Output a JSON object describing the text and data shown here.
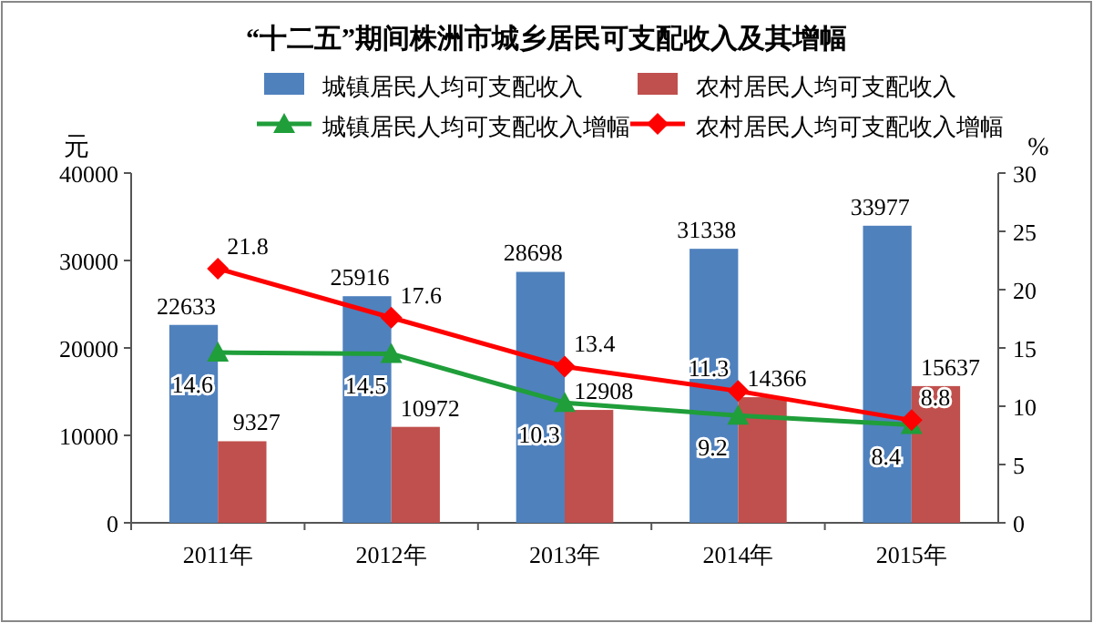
{
  "chart_data": {
    "type": "bar",
    "title": "“十二五”期间株洲市城乡居民可支配收入及其增幅",
    "categories": [
      "2011年",
      "2012年",
      "2013年",
      "2014年",
      "2015年"
    ],
    "ylabel": "元",
    "y2label": "%",
    "ylim": [
      0,
      40000
    ],
    "yticks": [
      0,
      10000,
      20000,
      30000,
      40000
    ],
    "y2lim": [
      0,
      30
    ],
    "y2ticks": [
      0,
      5,
      10,
      15,
      20,
      25,
      30
    ],
    "data_labels": true,
    "legend": "top",
    "series": [
      {
        "name": "城镇居民人均可支配收入",
        "color": "#4f81bd",
        "values": [
          22633,
          25916,
          28698,
          31338,
          33977
        ]
      },
      {
        "name": "农村居民人均可支配收入",
        "color": "#c0504d",
        "values": [
          9327,
          10972,
          12908,
          14366,
          15637
        ]
      },
      {
        "name": "城镇居民人均可支配收入增幅",
        "type": "line",
        "axis": "y2",
        "color": "#1f9e3a",
        "marker": "triangle",
        "values": [
          14.6,
          14.5,
          10.3,
          9.2,
          8.4
        ]
      },
      {
        "name": "农村居民人均可支配收入增幅",
        "type": "line",
        "axis": "y2",
        "color": "#ff0000",
        "marker": "diamond",
        "values": [
          21.8,
          17.6,
          13.4,
          11.3,
          8.8
        ]
      }
    ]
  }
}
